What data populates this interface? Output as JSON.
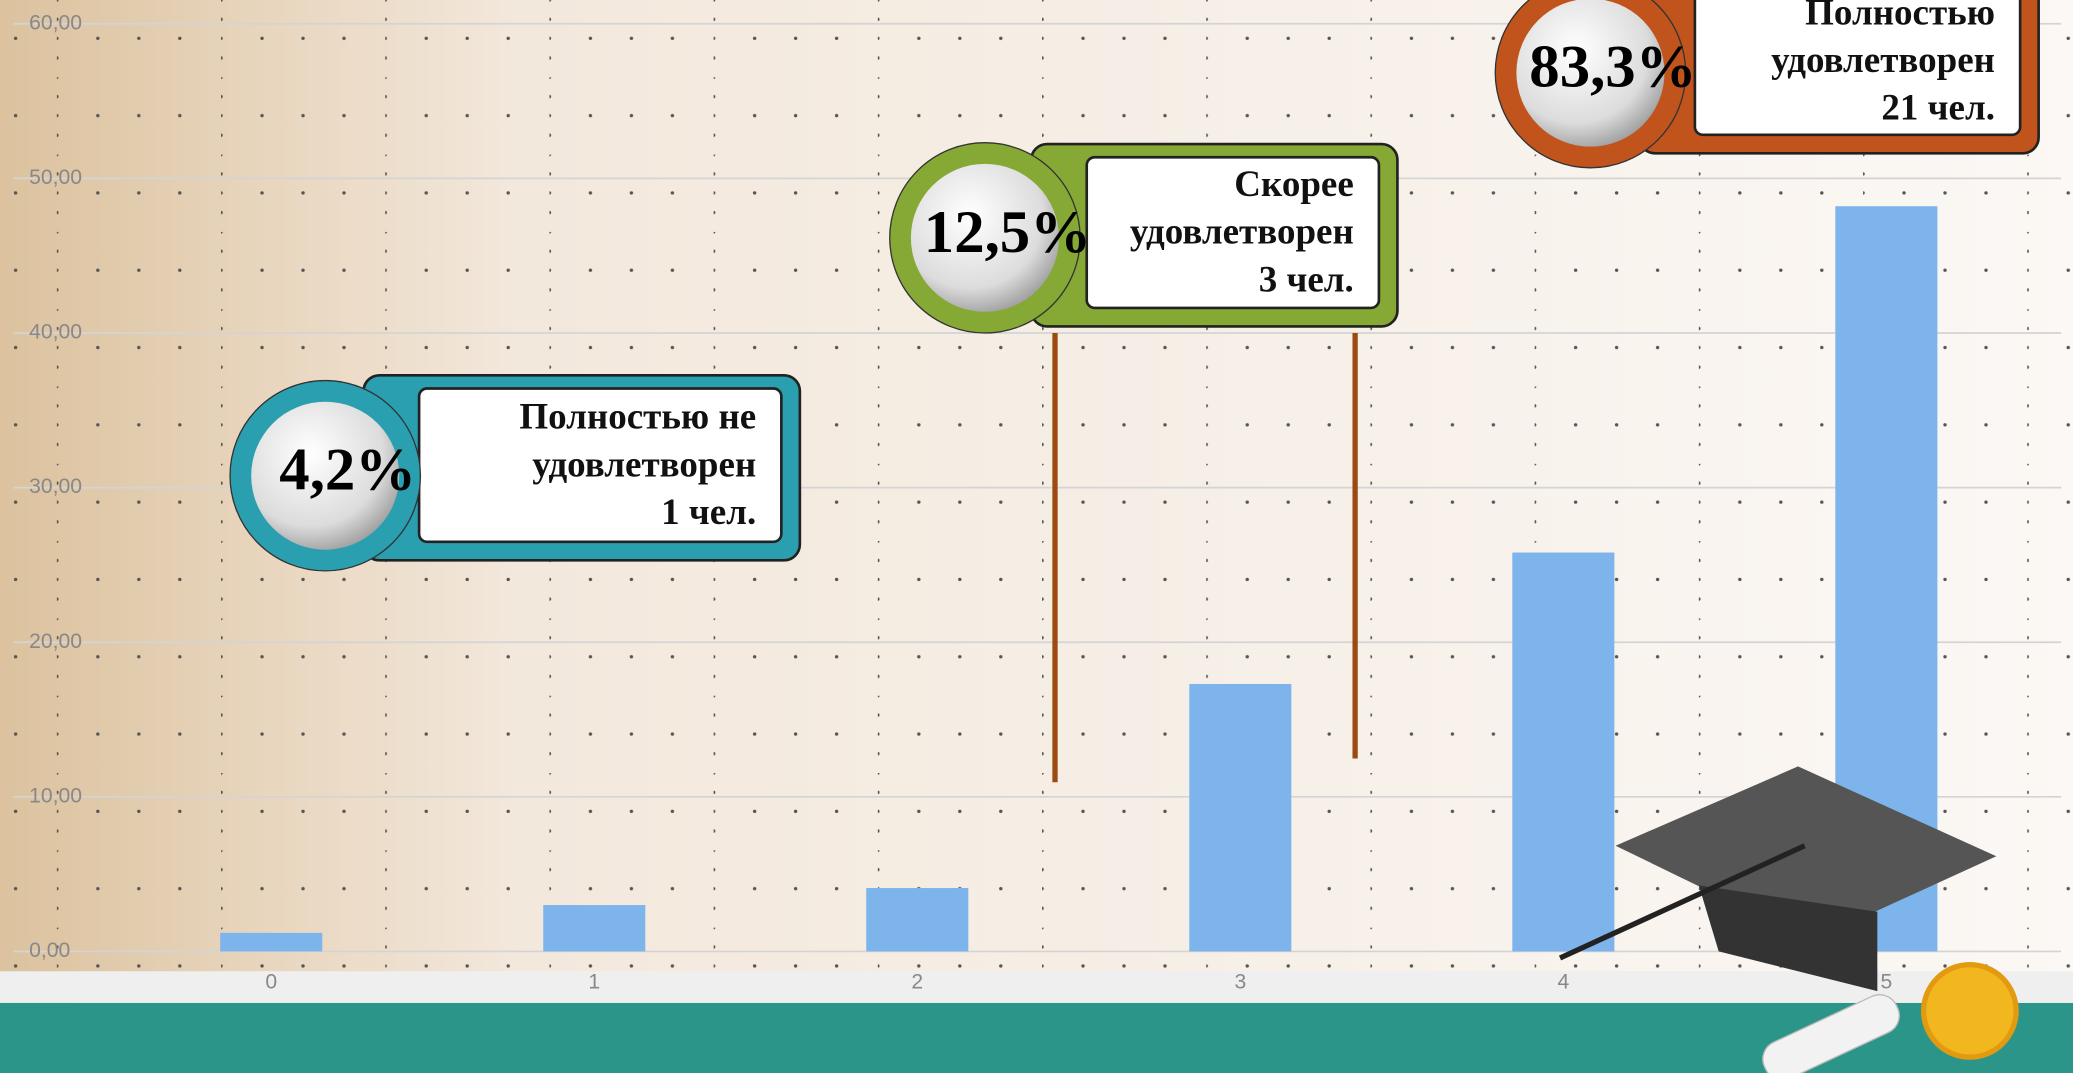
{
  "chart_data": {
    "type": "bar",
    "categories": [
      "0",
      "1",
      "2",
      "3",
      "4",
      "5"
    ],
    "values": [
      1.2,
      3.0,
      4.1,
      17.3,
      25.8,
      48.2
    ],
    "color": "#7eb4ec",
    "ylim": [
      0,
      60
    ],
    "yticks": [
      {
        "value": 0,
        "label": "0,00"
      },
      {
        "value": 10,
        "label": "10,00"
      },
      {
        "value": 20,
        "label": "20,00"
      },
      {
        "value": 30,
        "label": "30,00"
      },
      {
        "value": 40,
        "label": "40,00"
      },
      {
        "value": 50,
        "label": "50,00"
      },
      {
        "value": 60,
        "label": "60,00"
      }
    ],
    "grid": true,
    "annotations": [
      {
        "percent": "4,2%",
        "lines": [
          "Полностью не",
          "удовлетворен",
          "1 чел."
        ],
        "color": "#2a9fb0"
      },
      {
        "percent": "12,5%",
        "lines": [
          "Скорее",
          "удовлетворен",
          "3 чел."
        ],
        "color": "#86a935"
      },
      {
        "percent": "83,3%",
        "lines": [
          "Полностью",
          "удовлетворен",
          "21 чел."
        ],
        "color": "#c0541c"
      }
    ]
  }
}
